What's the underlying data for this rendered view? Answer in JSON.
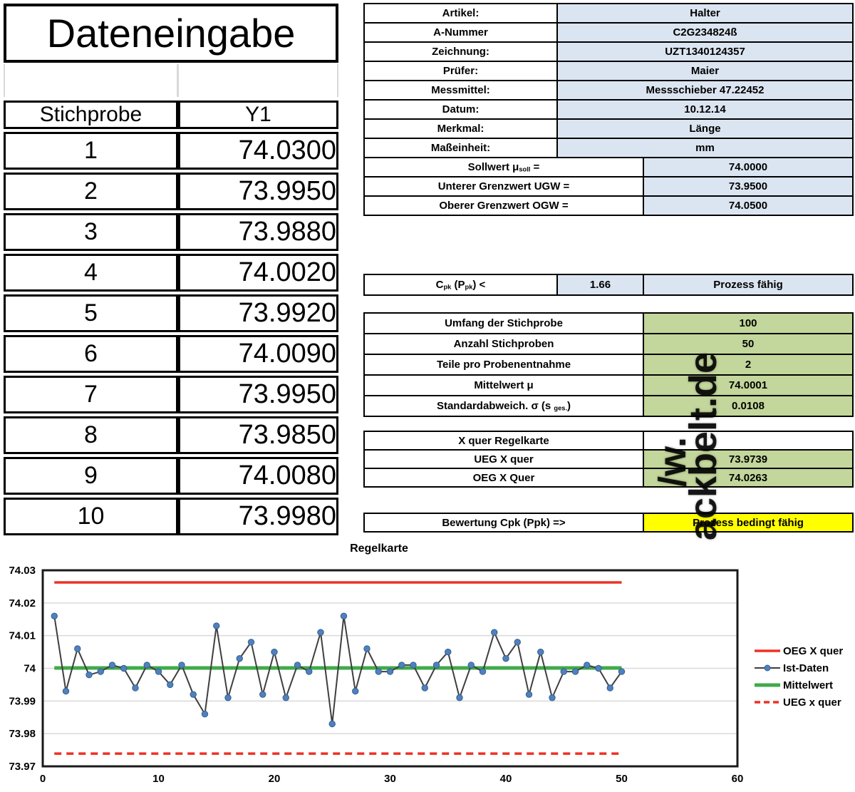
{
  "dateneingabe": {
    "title": "Dateneingabe",
    "headers": [
      "Stichprobe",
      "Y1"
    ],
    "rows": [
      [
        "1",
        "74.0300"
      ],
      [
        "2",
        "73.9950"
      ],
      [
        "3",
        "73.9880"
      ],
      [
        "4",
        "74.0020"
      ],
      [
        "5",
        "73.9920"
      ],
      [
        "6",
        "74.0090"
      ],
      [
        "7",
        "73.9950"
      ],
      [
        "8",
        "73.9850"
      ],
      [
        "9",
        "74.0080"
      ],
      [
        "10",
        "73.9980"
      ]
    ]
  },
  "info_form": {
    "rows": [
      {
        "label": "Artikel:",
        "value": "Halter",
        "wide": false
      },
      {
        "label": "A-Nummer",
        "value": "C2G234824ß",
        "wide": false
      },
      {
        "label": "Zeichnung:",
        "value": "UZT1340124357",
        "wide": false
      },
      {
        "label": "Prüfer:",
        "value": "Maier",
        "wide": false
      },
      {
        "label": "Messmittel:",
        "value": "Messschieber 47.22452",
        "wide": false
      },
      {
        "label": "Datum:",
        "value": "10.12.14",
        "wide": false
      },
      {
        "label": "Merkmal:",
        "value": "Länge",
        "wide": false
      },
      {
        "label": "Maßeinheit:",
        "value": "mm",
        "wide": false
      },
      {
        "label_rich": [
          [
            "Sollwert μ",
            false
          ],
          [
            "soll",
            true
          ],
          [
            " =",
            false
          ]
        ],
        "value": "74.0000",
        "wide": true
      },
      {
        "label": "Unterer Grenzwert UGW =",
        "value": "73.9500",
        "wide": true
      },
      {
        "label": "Oberer Grenzwert OGW =",
        "value": "74.0500",
        "wide": true
      }
    ]
  },
  "cpk_row": {
    "label_rich": [
      [
        "C",
        false
      ],
      [
        "pk",
        true
      ],
      [
        " (P",
        false
      ],
      [
        "pk",
        true
      ],
      [
        ") <",
        false
      ]
    ],
    "value": "1.66",
    "verdict": "Prozess fähig"
  },
  "stats_block": {
    "rows": [
      {
        "label": "Umfang der Stichprobe",
        "value": "100"
      },
      {
        "label": "Anzahl Stichproben",
        "value": "50"
      },
      {
        "label": "Teile pro Probenentnahme",
        "value": "2"
      },
      {
        "label": "Mittelwert μ",
        "value": "74.0001"
      },
      {
        "label_rich": [
          [
            "Standardabweich. σ (s ",
            false
          ],
          [
            "ges.",
            true
          ],
          [
            ")",
            false
          ]
        ],
        "value": "0.0108"
      }
    ]
  },
  "xquer_block": {
    "header": "X quer Regelkarte",
    "rows": [
      {
        "label": "UEG X quer",
        "value": "73.9739"
      },
      {
        "label": "OEG X Quer",
        "value": "74.0263"
      }
    ]
  },
  "bewertung_row": {
    "label": "Bewertung Cpk (Ppk) =>",
    "value": "Prozess bedingt fähig"
  },
  "watermark": {
    "parts": [
      "/w.",
      "ackbelt.de"
    ]
  },
  "colors": {
    "cell_blue": "#dbe5f1",
    "cell_green": "#c3d69b",
    "cell_yellow": "#ffff00",
    "line_red": "#ed3124",
    "line_green": "#3faa49",
    "marker_blue": "#4f81bd",
    "marker_edge": "#365f91",
    "series_line": "#3f3f3f",
    "grid": "#d9d9d9"
  },
  "chart_data": {
    "type": "line",
    "title": "Regelkarte",
    "xlabel": "",
    "ylabel": "",
    "xlim": [
      0,
      60
    ],
    "ylim": [
      73.97,
      74.03
    ],
    "xticks": [
      0,
      10,
      20,
      30,
      40,
      50,
      60
    ],
    "yticks": [
      {
        "v": 74.03,
        "label": "74.03"
      },
      {
        "v": 74.02,
        "label": "74.02"
      },
      {
        "v": 74.01,
        "label": "74.01"
      },
      {
        "v": 74.0,
        "label": "74"
      },
      {
        "v": 73.99,
        "label": "73.99"
      },
      {
        "v": 73.98,
        "label": "73.98"
      },
      {
        "v": 73.97,
        "label": "73.97"
      }
    ],
    "grid": true,
    "legend_position": "right",
    "series": [
      {
        "name": "OEG X quer",
        "kind": "hline",
        "value": 74.0263,
        "style": "solid"
      },
      {
        "name": "Ist-Daten",
        "kind": "line-markers",
        "values": [
          74.016,
          73.993,
          74.006,
          73.998,
          73.999,
          74.001,
          74.0,
          73.994,
          74.001,
          73.999,
          73.995,
          74.001,
          73.992,
          73.986,
          74.013,
          73.991,
          74.003,
          74.008,
          73.992,
          74.005,
          73.991,
          74.001,
          73.999,
          74.011,
          73.983,
          74.016,
          73.993,
          74.006,
          73.999,
          73.999,
          74.001,
          74.001,
          73.994,
          74.001,
          74.005,
          73.991,
          74.001,
          73.999,
          74.011,
          74.003,
          74.008,
          73.992,
          74.005,
          73.991,
          73.999,
          73.999,
          74.001,
          74.0,
          73.994,
          73.999
        ]
      },
      {
        "name": "Mittelwert",
        "kind": "hline",
        "value": 74.0001,
        "style": "solid"
      },
      {
        "name": "UEG x quer",
        "kind": "hline",
        "value": 73.9739,
        "style": "dashed"
      }
    ]
  }
}
